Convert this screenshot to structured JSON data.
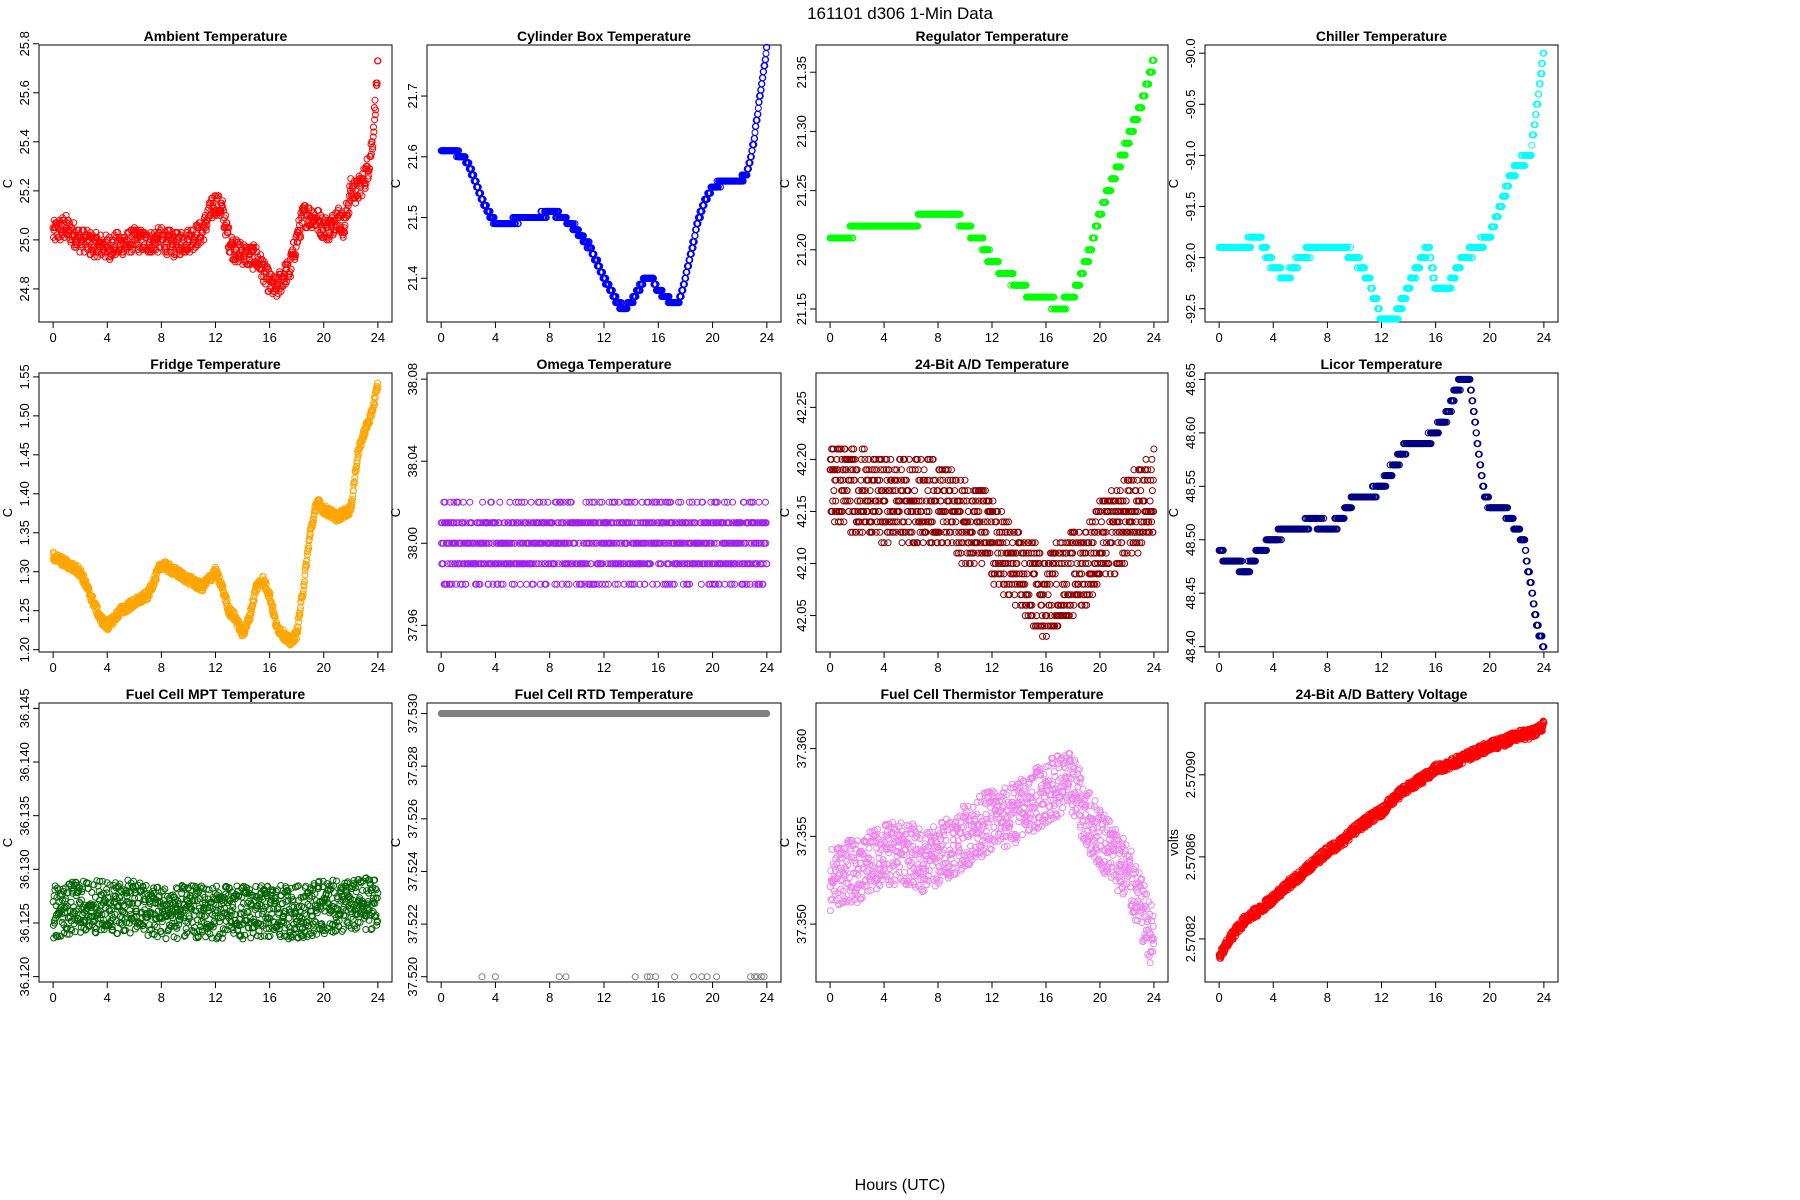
{
  "figure": {
    "title": "161101    d306    1-Min Data",
    "xlabel": "Hours (UTC)"
  },
  "chart_data": [
    {
      "type": "scatter",
      "title": "Ambient Temperature",
      "ylabel": "C",
      "color": "#ff0000",
      "xlim": [
        0,
        24
      ],
      "xticks": [
        0,
        4,
        8,
        12,
        16,
        20,
        24
      ],
      "ylim": [
        24.665,
        25.795
      ],
      "yticks": [
        24.8,
        25.0,
        25.2,
        25.4,
        25.6,
        25.8
      ],
      "ydec": 1,
      "x": [
        0,
        1,
        2,
        3,
        4,
        5,
        6,
        7,
        8,
        9,
        10,
        11,
        11.5,
        12,
        12.5,
        13,
        13.5,
        14,
        14.5,
        15,
        15.5,
        16,
        16.5,
        17,
        17.5,
        18,
        18.5,
        19,
        19.5,
        20,
        20.5,
        21,
        21.5,
        22,
        22.5,
        23,
        23.3,
        23.6,
        24
      ],
      "y": [
        25.03,
        25.05,
        25.0,
        24.98,
        24.97,
        24.98,
        25.0,
        24.99,
        25.0,
        24.98,
        25.0,
        25.03,
        25.1,
        25.15,
        25.12,
        25.0,
        24.95,
        24.95,
        24.93,
        24.93,
        24.88,
        24.82,
        24.8,
        24.85,
        24.88,
        25.0,
        25.1,
        25.1,
        25.08,
        25.05,
        25.05,
        25.1,
        25.05,
        25.2,
        25.2,
        25.25,
        25.3,
        25.4,
        25.7
      ]
    },
    {
      "type": "scatter",
      "title": "Cylinder Box Temperature",
      "ylabel": "C",
      "color": "#0000ff",
      "xlim": [
        0,
        24
      ],
      "xticks": [
        0,
        4,
        8,
        12,
        16,
        20,
        24
      ],
      "ylim": [
        21.328,
        21.784
      ],
      "yticks": [
        21.4,
        21.5,
        21.6,
        21.7
      ],
      "ydec": 1,
      "x": [
        0,
        1,
        2,
        3,
        4,
        5,
        6,
        7,
        8,
        9,
        10,
        11,
        12,
        13,
        13.5,
        14,
        14.5,
        15,
        15.5,
        16,
        16.5,
        17,
        17.5,
        18,
        18.5,
        19,
        19.5,
        20,
        21,
        22,
        22.5,
        23,
        23.5,
        24
      ],
      "y": [
        21.61,
        21.61,
        21.59,
        21.53,
        21.49,
        21.49,
        21.5,
        21.5,
        21.51,
        21.5,
        21.48,
        21.45,
        21.4,
        21.36,
        21.35,
        21.36,
        21.38,
        21.4,
        21.4,
        21.38,
        21.37,
        21.36,
        21.36,
        21.4,
        21.45,
        21.5,
        21.53,
        21.55,
        21.56,
        21.56,
        21.57,
        21.62,
        21.7,
        21.78
      ]
    },
    {
      "type": "scatter",
      "title": "Regulator Temperature",
      "ylabel": "C",
      "color": "#00ff00",
      "xlim": [
        0,
        24
      ],
      "xticks": [
        0,
        4,
        8,
        12,
        16,
        20,
        24
      ],
      "ylim": [
        21.139,
        21.373
      ],
      "yticks": [
        21.15,
        21.2,
        21.25,
        21.3,
        21.35
      ],
      "ydec": 2,
      "x": [
        0,
        1,
        2,
        3,
        4,
        5,
        6,
        7,
        8,
        9,
        10,
        11,
        12,
        13,
        14,
        15,
        16,
        17,
        18,
        19,
        20,
        21,
        22,
        23,
        24
      ],
      "y": [
        21.21,
        21.21,
        21.22,
        21.22,
        21.22,
        21.22,
        21.22,
        21.23,
        21.23,
        21.23,
        21.22,
        21.21,
        21.19,
        21.18,
        21.17,
        21.16,
        21.16,
        21.15,
        21.16,
        21.19,
        21.23,
        21.26,
        21.29,
        21.32,
        21.36
      ]
    },
    {
      "type": "scatter",
      "title": "Chiller Temperature",
      "ylabel": "C",
      "color": "#00ffff",
      "xlim": [
        0,
        24
      ],
      "xticks": [
        0,
        4,
        8,
        12,
        16,
        20,
        24
      ],
      "ylim": [
        -92.63,
        -89.92
      ],
      "yticks": [
        -92.5,
        -92.0,
        -91.5,
        -91.0,
        -90.5,
        -90.0
      ],
      "ydec": 1,
      "x": [
        0,
        1,
        2,
        2.5,
        3,
        4,
        5,
        6,
        7,
        8,
        9,
        10,
        11,
        11.5,
        12,
        13,
        14,
        15,
        15.5,
        16,
        17,
        18,
        19,
        20,
        21,
        22,
        23,
        24
      ],
      "y": [
        -91.9,
        -91.9,
        -91.9,
        -91.8,
        -91.8,
        -92.1,
        -92.2,
        -92.0,
        -91.9,
        -91.9,
        -91.9,
        -92.0,
        -92.2,
        -92.4,
        -92.6,
        -92.6,
        -92.3,
        -92.0,
        -91.9,
        -92.3,
        -92.3,
        -92.0,
        -91.9,
        -91.8,
        -91.4,
        -91.1,
        -91.0,
        -90.0
      ]
    },
    {
      "type": "scatter",
      "title": "Fridge Temperature",
      "ylabel": "C",
      "color": "#ffa500",
      "xlim": [
        0,
        24
      ],
      "xticks": [
        0,
        4,
        8,
        12,
        16,
        20,
        24
      ],
      "ylim": [
        1.197,
        1.555
      ],
      "yticks": [
        1.2,
        1.25,
        1.3,
        1.35,
        1.4,
        1.45,
        1.5,
        1.55
      ],
      "ydec": 2,
      "x": [
        0,
        1,
        2,
        3,
        3.5,
        4,
        5,
        6,
        7,
        8,
        9,
        10,
        11,
        12,
        12.5,
        13,
        13.5,
        14,
        14.5,
        15,
        15.5,
        16,
        16.5,
        17,
        17.5,
        18,
        18.5,
        19,
        19.5,
        20,
        21,
        22,
        22.5,
        23,
        23.5,
        24
      ],
      "y": [
        1.32,
        1.31,
        1.3,
        1.26,
        1.24,
        1.23,
        1.25,
        1.26,
        1.27,
        1.31,
        1.3,
        1.29,
        1.28,
        1.3,
        1.28,
        1.25,
        1.24,
        1.22,
        1.24,
        1.28,
        1.29,
        1.27,
        1.23,
        1.22,
        1.21,
        1.22,
        1.28,
        1.35,
        1.39,
        1.38,
        1.37,
        1.38,
        1.45,
        1.48,
        1.5,
        1.54
      ]
    },
    {
      "type": "scatter",
      "title": "Omega Temperature",
      "ylabel": "C",
      "color": "#a020f0",
      "xlim": [
        0,
        24
      ],
      "xticks": [
        0,
        4,
        8,
        12,
        16,
        20,
        24
      ],
      "ylim": [
        37.947,
        38.083
      ],
      "yticks": [
        37.96,
        38.0,
        38.04,
        38.08
      ],
      "ydec": 2,
      "x": [
        0,
        1,
        2,
        3,
        4,
        5,
        6,
        7,
        8,
        9,
        10,
        11,
        12,
        13,
        14,
        15,
        16,
        17,
        18,
        19,
        20,
        21,
        22,
        23,
        24
      ],
      "y": [
        38.0,
        38.0,
        38.0,
        38.0,
        38.0,
        38.0,
        38.0,
        38.0,
        38.0,
        38.0,
        38.0,
        38.0,
        38.0,
        38.0,
        38.0,
        38.0,
        38.0,
        38.0,
        38.0,
        38.0,
        38.0,
        38.0,
        38.0,
        38.0,
        38.0
      ]
    },
    {
      "type": "scatter",
      "title": "24-Bit A/D Temperature",
      "ylabel": "C",
      "color": "#8b0000",
      "xlim": [
        0,
        24
      ],
      "xticks": [
        0,
        4,
        8,
        12,
        16,
        20,
        24
      ],
      "ylim": [
        42.015,
        42.283
      ],
      "yticks": [
        42.05,
        42.1,
        42.15,
        42.2,
        42.25
      ],
      "ydec": 2,
      "x": [
        0,
        2,
        4,
        6,
        8,
        10,
        11,
        12,
        14,
        16,
        17,
        18,
        19,
        20,
        22,
        24
      ],
      "y": [
        42.18,
        42.17,
        42.16,
        42.16,
        42.16,
        42.14,
        42.14,
        42.12,
        42.09,
        42.07,
        42.08,
        42.09,
        42.1,
        42.12,
        42.14,
        42.17
      ]
    },
    {
      "type": "scatter",
      "title": "Licor Temperature",
      "ylabel": "C",
      "color": "#000080",
      "xlim": [
        0,
        24
      ],
      "xticks": [
        0,
        4,
        8,
        12,
        16,
        20,
        24
      ],
      "ylim": [
        48.395,
        48.656
      ],
      "yticks": [
        48.4,
        48.45,
        48.5,
        48.55,
        48.6,
        48.65
      ],
      "ydec": 2,
      "x": [
        0,
        0.5,
        1,
        2,
        3,
        4,
        5,
        6,
        7,
        8,
        9,
        10,
        11,
        12,
        13,
        14,
        15,
        16,
        17,
        17.5,
        18,
        18.5,
        19,
        19.5,
        20,
        21,
        22,
        22.5,
        23,
        23.5,
        24
      ],
      "y": [
        48.49,
        48.48,
        48.48,
        48.47,
        48.49,
        48.5,
        48.51,
        48.51,
        48.52,
        48.51,
        48.52,
        48.54,
        48.54,
        48.55,
        48.57,
        48.59,
        48.59,
        48.6,
        48.62,
        48.64,
        48.65,
        48.65,
        48.6,
        48.55,
        48.53,
        48.53,
        48.51,
        48.5,
        48.46,
        48.42,
        48.4
      ]
    },
    {
      "type": "scatter",
      "title": "Fuel Cell MPT Temperature",
      "ylabel": "C",
      "color": "#006400",
      "xlim": [
        0,
        24
      ],
      "xticks": [
        0,
        4,
        8,
        12,
        16,
        20,
        24
      ],
      "ylim": [
        36.1195,
        36.1455
      ],
      "yticks": [
        36.12,
        36.125,
        36.13,
        36.135,
        36.14,
        36.145
      ],
      "ydec": 3,
      "x": [
        0,
        2,
        4,
        6,
        8,
        10,
        12,
        14,
        16,
        18,
        20,
        22,
        24
      ],
      "y": [
        36.126,
        36.1265,
        36.1265,
        36.1265,
        36.126,
        36.126,
        36.126,
        36.126,
        36.126,
        36.126,
        36.1265,
        36.1265,
        36.127
      ]
    },
    {
      "type": "scatter",
      "title": "Fuel Cell RTD Temperature",
      "ylabel": "C",
      "color": "#808080",
      "xlim": [
        0,
        24
      ],
      "xticks": [
        0,
        4,
        8,
        12,
        16,
        20,
        24
      ],
      "ylim": [
        37.5198,
        37.5304
      ],
      "yticks": [
        37.52,
        37.522,
        37.524,
        37.526,
        37.528,
        37.53
      ],
      "ydec": 3,
      "x": [
        0,
        24
      ],
      "y": [
        37.53,
        37.53
      ],
      "outliers_x": [
        3,
        4,
        8.7,
        9.2,
        14.3,
        15.2,
        15.4,
        15.8,
        17.2,
        18.6,
        19.2,
        19.6,
        20.3,
        22.8,
        23.1,
        23.3,
        23.6,
        23.8
      ],
      "outliers_y": [
        37.52,
        37.52,
        37.52,
        37.52,
        37.52,
        37.52,
        37.52,
        37.52,
        37.52,
        37.52,
        37.52,
        37.52,
        37.52,
        37.52,
        37.52,
        37.52,
        37.52,
        37.52
      ]
    },
    {
      "type": "scatter",
      "title": "Fuel Cell Thermistor Temperature",
      "ylabel": "C",
      "color": "#ee82ee",
      "xlim": [
        0,
        24
      ],
      "xticks": [
        0,
        4,
        8,
        12,
        16,
        20,
        24
      ],
      "ylim": [
        37.3467,
        37.3626
      ],
      "yticks": [
        37.35,
        37.355,
        37.36
      ],
      "ydec": 3,
      "x": [
        0,
        1,
        2,
        3,
        4,
        5,
        6,
        7,
        8,
        9,
        10,
        11,
        12,
        13,
        14,
        15,
        16,
        17,
        18,
        19,
        20,
        21,
        22,
        23,
        24
      ],
      "y": [
        37.3525,
        37.353,
        37.353,
        37.3535,
        37.354,
        37.354,
        37.354,
        37.3535,
        37.354,
        37.3545,
        37.355,
        37.3555,
        37.356,
        37.356,
        37.3565,
        37.357,
        37.3575,
        37.358,
        37.358,
        37.356,
        37.355,
        37.354,
        37.353,
        37.351,
        37.349
      ]
    },
    {
      "type": "scatter",
      "title": "24-Bit A/D Battery Voltage",
      "ylabel": "volts",
      "color": "#ff0000",
      "xlim": [
        0,
        24
      ],
      "xticks": [
        0,
        4,
        8,
        12,
        16,
        20,
        24
      ],
      "ylim": [
        2.570799,
        2.570935
      ],
      "yticks": [
        2.57082,
        2.57086,
        2.5709
      ],
      "ydec": 5,
      "x": [
        0,
        1,
        2,
        3,
        4,
        5,
        6,
        7,
        8,
        9,
        10,
        11,
        12,
        13,
        14,
        15,
        16,
        17,
        18,
        19,
        20,
        21,
        22,
        23,
        24
      ],
      "y": [
        2.570811,
        2.570822,
        2.57083,
        2.570834,
        2.57084,
        2.570846,
        2.570851,
        2.570857,
        2.570863,
        2.570867,
        2.570873,
        2.570878,
        2.570882,
        2.570889,
        2.570894,
        2.570898,
        2.570903,
        2.570905,
        2.570908,
        2.570911,
        2.570914,
        2.570916,
        2.570919,
        2.57092,
        2.570924
      ]
    }
  ]
}
